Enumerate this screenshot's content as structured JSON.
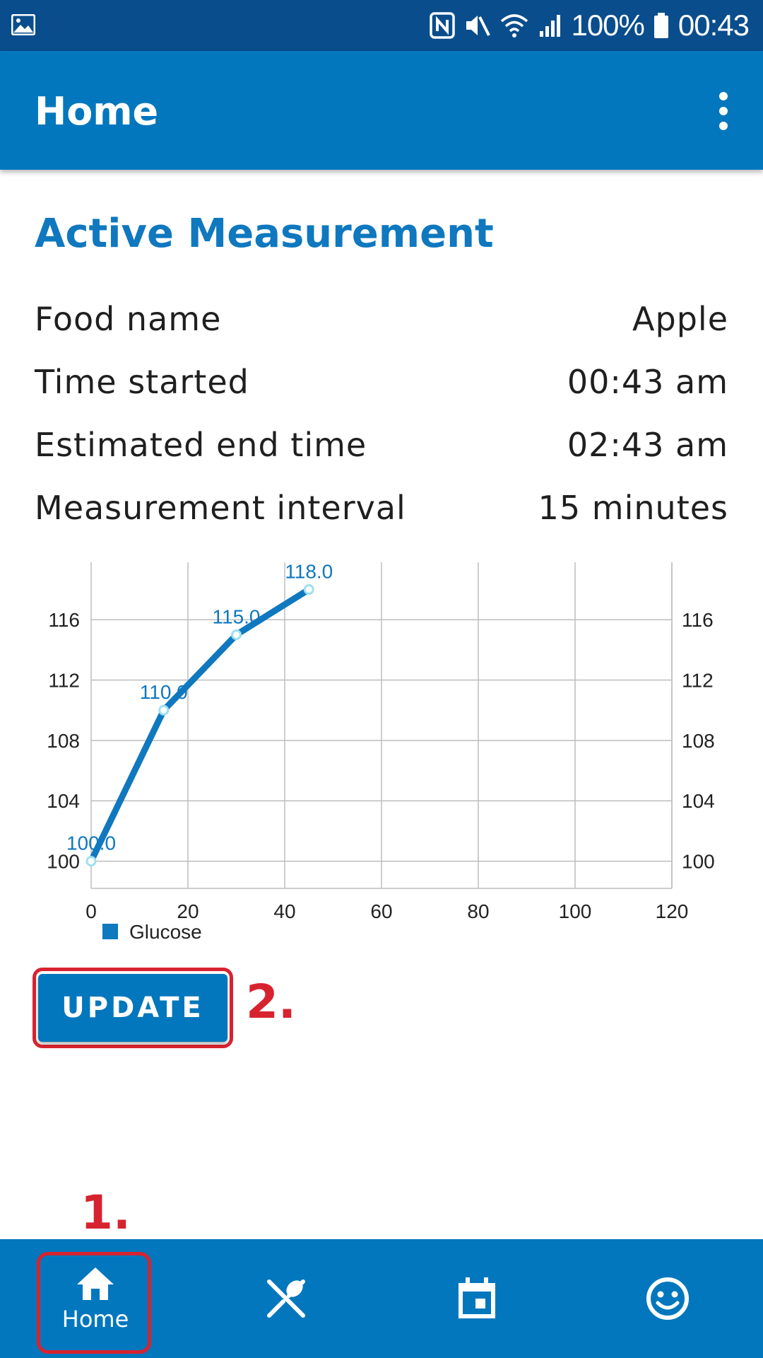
{
  "status_bar": {
    "battery": "100%",
    "time": "00:43",
    "icons": [
      "gallery-icon",
      "nfc-icon",
      "mute-icon",
      "wifi-icon",
      "signal-icon",
      "battery-icon"
    ]
  },
  "app_bar": {
    "title": "Home",
    "menu_icon": "more-vert-icon"
  },
  "active_measurement": {
    "title": "Active Measurement",
    "rows": [
      {
        "label": "Food name",
        "value": "Apple"
      },
      {
        "label": "Time started",
        "value": "00:43 am"
      },
      {
        "label": "Estimated end time",
        "value": "02:43 am"
      },
      {
        "label": "Measurement interval",
        "value": "15 minutes"
      }
    ]
  },
  "chart_data": {
    "type": "line",
    "x": [
      0,
      15,
      30,
      45
    ],
    "series": [
      {
        "name": "Glucose",
        "values": [
          100.0,
          110.0,
          115.0,
          118.0
        ],
        "data_labels": [
          "100.0",
          "110.0",
          "115.0",
          "118.0"
        ]
      }
    ],
    "xlim": [
      0,
      120
    ],
    "x_ticks": [
      "0",
      "20",
      "40",
      "60",
      "80",
      "100",
      "120"
    ],
    "ylim": [
      98.2,
      119.8
    ],
    "y_ticks": [
      "100",
      "104",
      "108",
      "112",
      "116"
    ],
    "y_axis_right": true,
    "grid": true,
    "legend_position": "bottom-left",
    "colors": {
      "line": "#0f78bf",
      "point_fill": "#ffffff",
      "point_stroke": "#9fe0f0",
      "grid": "#bdbdbd"
    }
  },
  "update_button": {
    "label": "UPDATE"
  },
  "annotations": {
    "home": "1.",
    "update": "2.",
    "color": "#d7232f"
  },
  "bottom_nav": {
    "items": [
      {
        "label": "Home",
        "icon": "home-icon"
      },
      {
        "label": "",
        "icon": "food-icon"
      },
      {
        "label": "",
        "icon": "calendar-icon"
      },
      {
        "label": "",
        "icon": "smiley-icon"
      }
    ]
  },
  "colors": {
    "primary": "#0277bd",
    "status_bar": "#0a4d8c",
    "accent_text": "#0f78bf"
  }
}
